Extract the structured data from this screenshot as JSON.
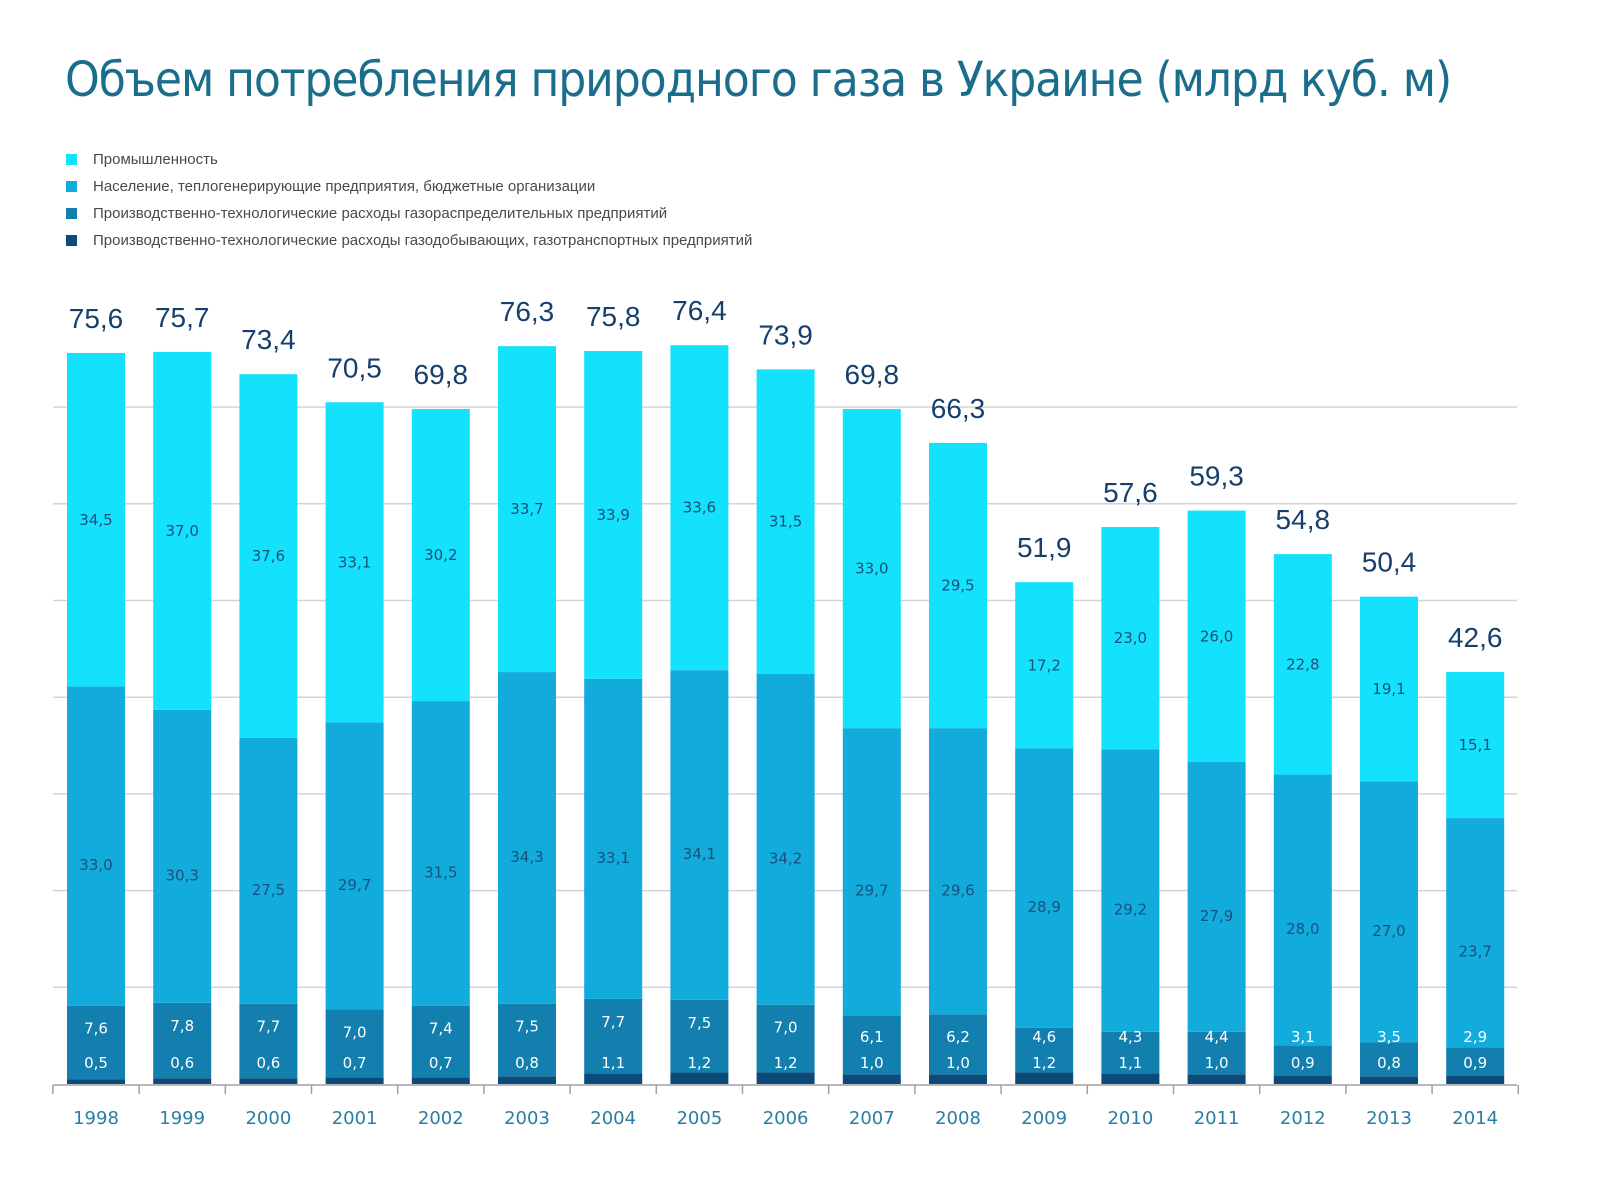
{
  "title": "Объем потребления природного газа в Украине (млрд куб. м)",
  "chart_data": {
    "type": "bar",
    "stacked": true,
    "title": "Объем потребления природного газа в Украине (млрд куб. м)",
    "xlabel": "",
    "ylabel": "",
    "ylim": [
      0,
      80
    ],
    "grid": true,
    "grid_step": 10,
    "legend_position": "top-left",
    "categories": [
      "1998",
      "1999",
      "2000",
      "2001",
      "2002",
      "2003",
      "2004",
      "2005",
      "2006",
      "2007",
      "2008",
      "2009",
      "2010",
      "2011",
      "2012",
      "2013",
      "2014"
    ],
    "totals": [
      "75,6",
      "75,7",
      "73,4",
      "70,5",
      "69,8",
      "76,3",
      "75,8",
      "76,4",
      "73,9",
      "69,8",
      "66,3",
      "51,9",
      "57,6",
      "59,3",
      "54,8",
      "50,4",
      "42,6"
    ],
    "total_values": [
      75.6,
      75.7,
      73.4,
      70.5,
      69.8,
      76.3,
      75.8,
      76.4,
      73.9,
      69.8,
      66.3,
      51.9,
      57.6,
      59.3,
      54.8,
      50.4,
      42.6
    ],
    "series": [
      {
        "name": "Производственно-технологические расходы газодобывающих, газотранспортных предприятий",
        "color": "#0c4a7a",
        "label_color": "#ffffff",
        "values": [
          0.5,
          0.6,
          0.6,
          0.7,
          0.7,
          0.8,
          1.1,
          1.2,
          1.2,
          1.0,
          1.0,
          1.2,
          1.1,
          1.0,
          0.9,
          0.8,
          0.9
        ],
        "labels": [
          "0,5",
          "0,6",
          "0,6",
          "0,7",
          "0,7",
          "0,8",
          "1,1",
          "1,2",
          "1,2",
          "1,0",
          "1,0",
          "1,2",
          "1,1",
          "1,0",
          "0,9",
          "0,8",
          "0,9"
        ]
      },
      {
        "name": "Производственно-технологические расходы газораспределительных предприятий",
        "color": "#127fae",
        "label_color": "#ffffff",
        "values": [
          7.6,
          7.8,
          7.7,
          7.0,
          7.4,
          7.5,
          7.7,
          7.5,
          7.0,
          6.1,
          6.2,
          4.6,
          4.3,
          4.4,
          3.1,
          3.5,
          2.9
        ],
        "labels": [
          "7,6",
          "7,8",
          "7,7",
          "7,0",
          "7,4",
          "7,5",
          "7,7",
          "7,5",
          "7,0",
          "6,1",
          "6,2",
          "4,6",
          "4,3",
          "4,4",
          "3,1",
          "3,5",
          "2,9"
        ]
      },
      {
        "name": "Население, теплогенерирующие предприятия, бюджетные организации",
        "color": "#12acdc",
        "label_color": "#1a4f7d",
        "values": [
          33.0,
          30.3,
          27.5,
          29.7,
          31.5,
          34.3,
          33.1,
          34.1,
          34.2,
          29.7,
          29.6,
          28.9,
          29.2,
          27.9,
          28.0,
          27.0,
          23.7
        ],
        "labels": [
          "33,0",
          "30,3",
          "27,5",
          "29,7",
          "31,5",
          "34,3",
          "33,1",
          "34,1",
          "34,2",
          "29,7",
          "29,6",
          "28,9",
          "29,2",
          "27,9",
          "28,0",
          "27,0",
          "23,7"
        ]
      },
      {
        "name": "Промышленность",
        "color": "#14e1fb",
        "label_color": "#1a4f7d",
        "values": [
          34.5,
          37.0,
          37.6,
          33.1,
          30.2,
          33.7,
          33.9,
          33.6,
          31.5,
          33.0,
          29.5,
          17.2,
          23.0,
          26.0,
          22.8,
          19.1,
          15.1
        ],
        "labels": [
          "34,5",
          "37,0",
          "37,6",
          "33,1",
          "30,2",
          "33,7",
          "33,9",
          "33,6",
          "31,5",
          "33,0",
          "29,5",
          "17,2",
          "23,0",
          "26,0",
          "22,8",
          "19,1",
          "15,1"
        ]
      }
    ]
  },
  "legend": [
    {
      "label": "Промышленность",
      "color": "#14e1fb"
    },
    {
      "label": "Население, теплогенерирующие предприятия, бюджетные организации",
      "color": "#12acdc"
    },
    {
      "label": "Производственно-технологические расходы газораспределительных предприятий",
      "color": "#127fae"
    },
    {
      "label": "Производственно-технологические расходы газодобывающих, газотранспортных предприятий",
      "color": "#0c4a7a"
    }
  ],
  "colors": {
    "title": "#1b6d8c",
    "total_label": "#173f6b",
    "year_label": "#2a7da3",
    "grid": "#d4d4d4",
    "axis": "#a0a0a0"
  }
}
